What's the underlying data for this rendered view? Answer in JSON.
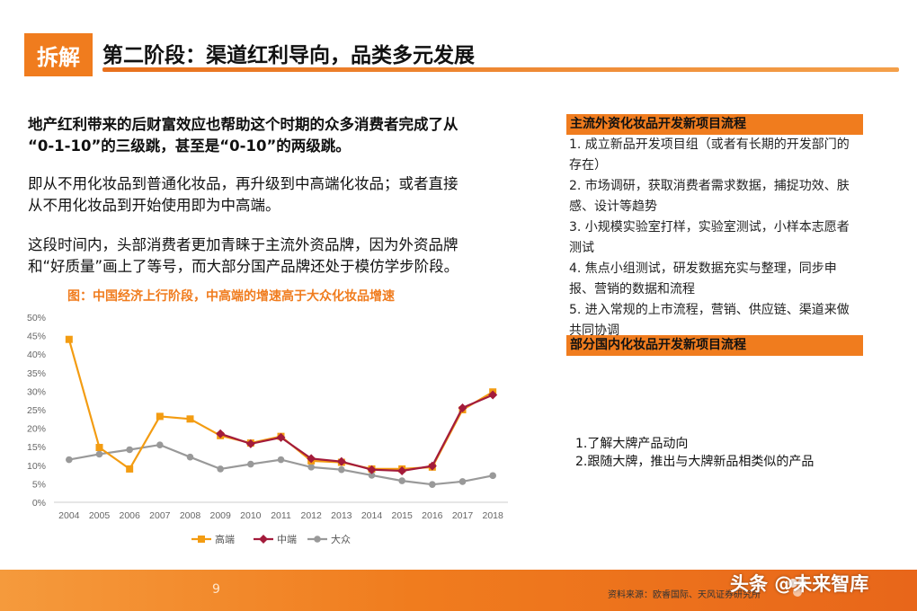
{
  "header": {
    "tag": "拆解",
    "title": "第二阶段：渠道红利导向，品类多元发展"
  },
  "left": {
    "p1_line1": "地产红利带来的后财富效应也帮助这个时期的众多消费者完成了从",
    "p1_line2": "“0-1-10”的三级跳，甚至是“0-10”的两级跳。",
    "p2_line1": "即从不用化妆品到普通化妆品，再升级到中高端化妆品；或者直接",
    "p2_line2": "从不用化妆品到开始使用即为中高端。",
    "p3_line1": "这段时间内，头部消费者更加青睐于主流外资品牌，因为外资品牌",
    "p3_line2": "和“好质量”画上了等号，而大部分国产品牌还处于模仿学步阶段。"
  },
  "chart_data": {
    "type": "line",
    "title": "图：中国经济上行阶段，中高端的增速高于大众化妆品增速",
    "categories": [
      "2004",
      "2005",
      "2006",
      "2007",
      "2008",
      "2009",
      "2010",
      "2011",
      "2012",
      "2013",
      "2014",
      "2015",
      "2016",
      "2017",
      "2018"
    ],
    "yticks": [
      "0%",
      "5%",
      "10%",
      "15%",
      "20%",
      "25%",
      "30%",
      "35%",
      "40%",
      "45%",
      "50%"
    ],
    "ylim": [
      0,
      50
    ],
    "grid": false,
    "legend_position": "bottom",
    "series": [
      {
        "name": "高端",
        "color": "#f39c12",
        "marker": "square",
        "values": [
          44,
          14.8,
          9,
          23.2,
          22.5,
          18,
          16,
          17.8,
          11.2,
          10.8,
          9,
          9,
          9.5,
          25,
          29.8
        ]
      },
      {
        "name": "中端",
        "color": "#a31b3b",
        "marker": "diamond",
        "values": [
          null,
          null,
          null,
          null,
          null,
          18.5,
          15.8,
          17.5,
          11.8,
          11,
          8.8,
          8.5,
          9.8,
          25.5,
          29
        ]
      },
      {
        "name": "大众",
        "color": "#999999",
        "marker": "circle",
        "values": [
          11.5,
          13,
          14.2,
          15.5,
          12.2,
          9,
          10.3,
          11.5,
          9.5,
          8.8,
          7.3,
          5.8,
          4.8,
          5.6,
          7.2
        ]
      }
    ]
  },
  "right": {
    "box1_title": "主流外资化妆品开发新项目流程",
    "steps": [
      "1. 成立新品开发项目组（或者有长期的开发部门的存在）",
      "2. 市场调研，获取消费者需求数据，捕捉功效、肤感、设计等趋势",
      "3. 小规模实验室打样，实验室测试，小样本志愿者测试",
      "4. 焦点小组测试，研发数据充实与整理，同步申报、营销的数据和流程",
      "5. 进入常规的上市流程，营销、供应链、渠道来做共同协调"
    ],
    "box2_title": "部分国内化妆品开发新项目流程",
    "notes": [
      "1.了解大牌产品动向",
      "2.跟随大牌，推出与大牌新品相类似的产品"
    ]
  },
  "footer": {
    "page": "9",
    "source": "资料来源：欧睿国际、天风证券研究所",
    "watermark": "头条 @未来智库",
    "bar_colors": [
      "#f59a3c",
      "#e8661a"
    ]
  }
}
